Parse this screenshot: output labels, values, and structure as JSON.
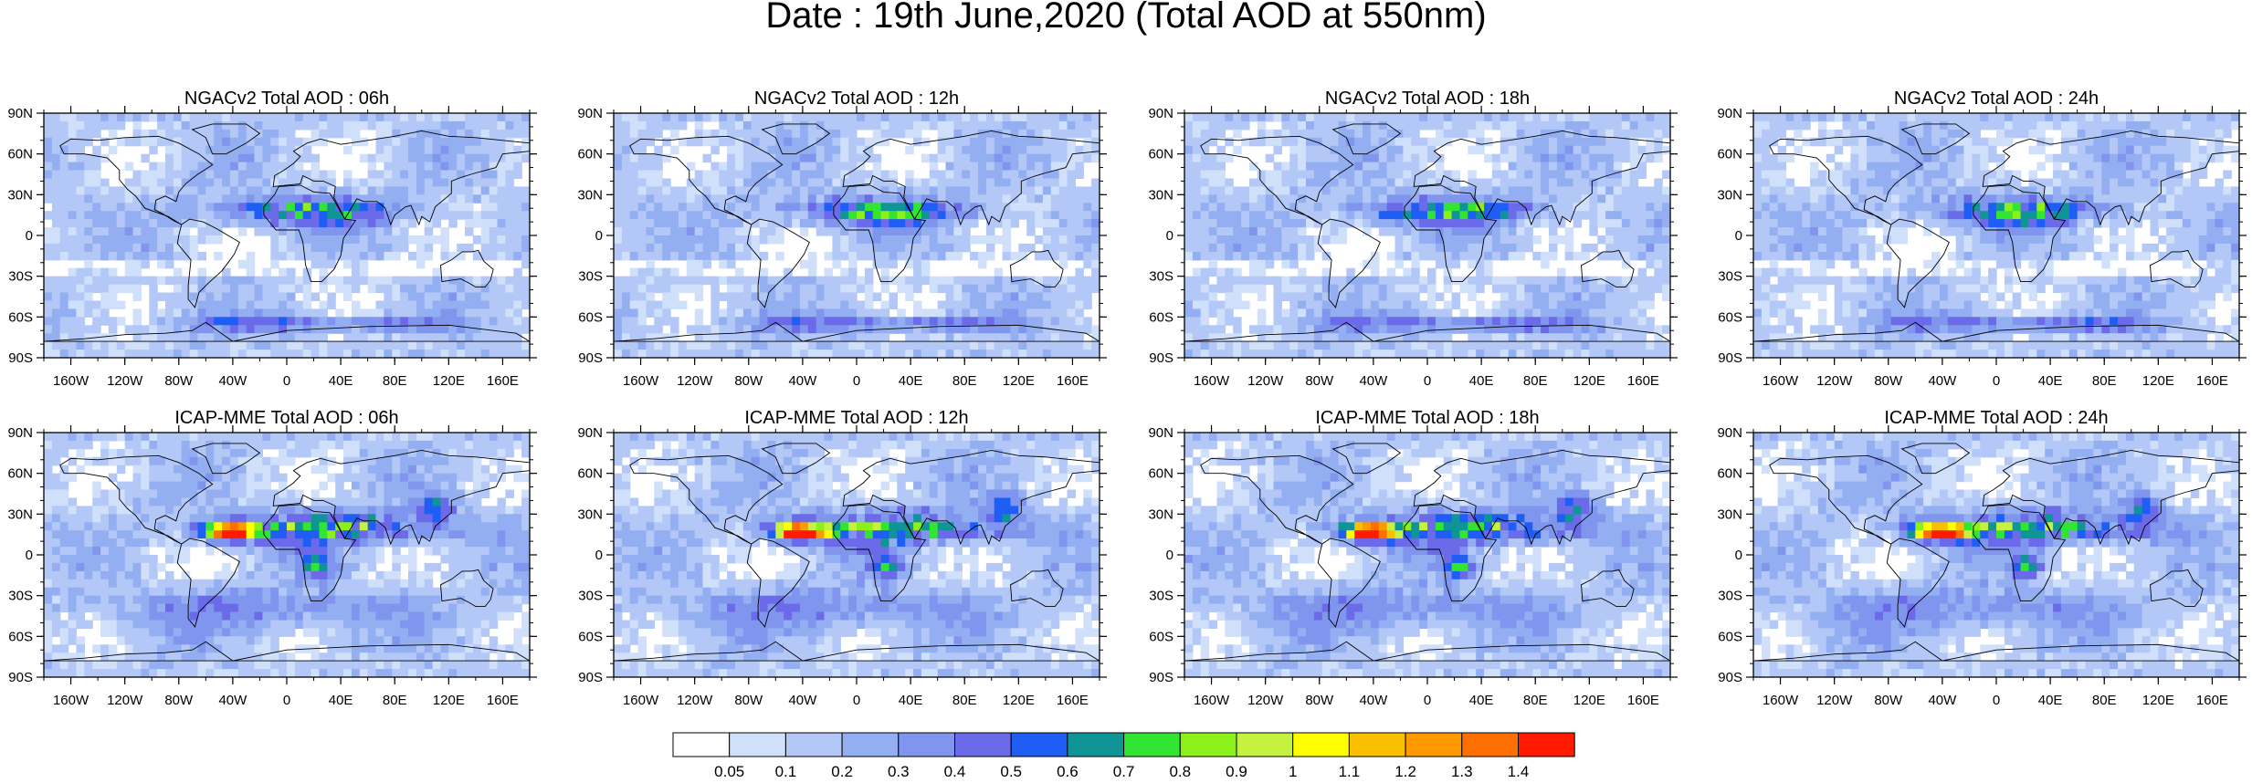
{
  "figure": {
    "title": "Date : 19th June,2020 (Total AOD at 550nm)"
  },
  "chart_data": [
    {
      "type": "heatmap",
      "title": "NGACv2 Total AOD : 06h",
      "model": "NGACv2",
      "variable": "Total AOD",
      "forecast_hour": "06h",
      "x_ticks": [
        "160W",
        "120W",
        "80W",
        "40W",
        "0",
        "40E",
        "80E",
        "120E",
        "160E"
      ],
      "y_ticks": [
        "90N",
        "60N",
        "30N",
        "0",
        "30S",
        "60S",
        "90S"
      ],
      "xlim": [
        -180,
        180
      ],
      "ylim": [
        -90,
        90
      ],
      "features": [
        {
          "name": "dust-band",
          "lon": [
            -60,
            90
          ],
          "lat": [
            5,
            40
          ],
          "aod_max": 0.8
        },
        {
          "name": "southern-ocean",
          "lon": [
            -80,
            120
          ],
          "lat": [
            -70,
            -55
          ],
          "aod_max": 0.5
        }
      ]
    },
    {
      "type": "heatmap",
      "title": "NGACv2 Total AOD : 12h",
      "model": "NGACv2",
      "variable": "Total AOD",
      "forecast_hour": "12h",
      "x_ticks": [
        "160W",
        "120W",
        "80W",
        "40W",
        "0",
        "40E",
        "80E",
        "120E",
        "160E"
      ],
      "y_ticks": [
        "90N",
        "60N",
        "30N",
        "0",
        "30S",
        "60S",
        "90S"
      ],
      "xlim": [
        -180,
        180
      ],
      "ylim": [
        -90,
        90
      ],
      "features": [
        {
          "name": "dust-band",
          "lon": [
            -60,
            90
          ],
          "lat": [
            5,
            40
          ],
          "aod_max": 0.8
        },
        {
          "name": "southern-ocean",
          "lon": [
            -80,
            120
          ],
          "lat": [
            -70,
            -55
          ],
          "aod_max": 0.5
        }
      ]
    },
    {
      "type": "heatmap",
      "title": "NGACv2 Total AOD : 18h",
      "model": "NGACv2",
      "variable": "Total AOD",
      "forecast_hour": "18h",
      "x_ticks": [
        "160W",
        "120W",
        "80W",
        "40W",
        "0",
        "40E",
        "80E",
        "120E",
        "160E"
      ],
      "y_ticks": [
        "90N",
        "60N",
        "30N",
        "0",
        "30S",
        "60S",
        "90S"
      ],
      "xlim": [
        -180,
        180
      ],
      "ylim": [
        -90,
        90
      ],
      "features": [
        {
          "name": "dust-band",
          "lon": [
            -60,
            90
          ],
          "lat": [
            5,
            40
          ],
          "aod_max": 0.8
        },
        {
          "name": "southern-ocean",
          "lon": [
            -80,
            120
          ],
          "lat": [
            -70,
            -55
          ],
          "aod_max": 0.5
        }
      ]
    },
    {
      "type": "heatmap",
      "title": "NGACv2 Total AOD : 24h",
      "model": "NGACv2",
      "variable": "Total AOD",
      "forecast_hour": "24h",
      "x_ticks": [
        "160W",
        "120W",
        "80W",
        "40W",
        "0",
        "40E",
        "80E",
        "120E",
        "160E"
      ],
      "y_ticks": [
        "90N",
        "60N",
        "30N",
        "0",
        "30S",
        "60S",
        "90S"
      ],
      "xlim": [
        -180,
        180
      ],
      "ylim": [
        -90,
        90
      ],
      "features": [
        {
          "name": "dust-band",
          "lon": [
            -60,
            90
          ],
          "lat": [
            5,
            40
          ],
          "aod_max": 0.8
        },
        {
          "name": "southern-ocean",
          "lon": [
            -80,
            120
          ],
          "lat": [
            -70,
            -55
          ],
          "aod_max": 0.5
        }
      ]
    },
    {
      "type": "heatmap",
      "title": "ICAP-MME Total AOD : 06h",
      "model": "ICAP-MME",
      "variable": "Total AOD",
      "forecast_hour": "06h",
      "x_ticks": [
        "160W",
        "120W",
        "80W",
        "40W",
        "0",
        "40E",
        "80E",
        "120E",
        "160E"
      ],
      "y_ticks": [
        "90N",
        "60N",
        "30N",
        "0",
        "30S",
        "60S",
        "90S"
      ],
      "xlim": [
        -180,
        180
      ],
      "ylim": [
        -90,
        90
      ],
      "features": [
        {
          "name": "saharan-dust-plume",
          "lon": [
            -65,
            -20
          ],
          "lat": [
            10,
            25
          ],
          "aod_max": 1.4
        },
        {
          "name": "dust-band",
          "lon": [
            -20,
            100
          ],
          "lat": [
            5,
            40
          ],
          "aod_max": 0.8
        },
        {
          "name": "central-africa",
          "lon": [
            10,
            35
          ],
          "lat": [
            -15,
            0
          ],
          "aod_max": 0.8
        }
      ]
    },
    {
      "type": "heatmap",
      "title": "ICAP-MME Total AOD : 12h",
      "model": "ICAP-MME",
      "variable": "Total AOD",
      "forecast_hour": "12h",
      "x_ticks": [
        "160W",
        "120W",
        "80W",
        "40W",
        "0",
        "40E",
        "80E",
        "120E",
        "160E"
      ],
      "y_ticks": [
        "90N",
        "60N",
        "30N",
        "0",
        "30S",
        "60S",
        "90S"
      ],
      "xlim": [
        -180,
        180
      ],
      "ylim": [
        -90,
        90
      ],
      "features": [
        {
          "name": "saharan-dust-plume",
          "lon": [
            -65,
            -20
          ],
          "lat": [
            10,
            25
          ],
          "aod_max": 1.4
        },
        {
          "name": "dust-band",
          "lon": [
            -20,
            100
          ],
          "lat": [
            5,
            40
          ],
          "aod_max": 0.8
        },
        {
          "name": "central-africa",
          "lon": [
            10,
            35
          ],
          "lat": [
            -15,
            0
          ],
          "aod_max": 0.8
        }
      ]
    },
    {
      "type": "heatmap",
      "title": "ICAP-MME Total AOD : 18h",
      "model": "ICAP-MME",
      "variable": "Total AOD",
      "forecast_hour": "18h",
      "x_ticks": [
        "160W",
        "120W",
        "80W",
        "40W",
        "0",
        "40E",
        "80E",
        "120E",
        "160E"
      ],
      "y_ticks": [
        "90N",
        "60N",
        "30N",
        "0",
        "30S",
        "60S",
        "90S"
      ],
      "xlim": [
        -180,
        180
      ],
      "ylim": [
        -90,
        90
      ],
      "features": [
        {
          "name": "saharan-dust-plume",
          "lon": [
            -65,
            -20
          ],
          "lat": [
            10,
            25
          ],
          "aod_max": 1.4
        },
        {
          "name": "dust-band",
          "lon": [
            -20,
            100
          ],
          "lat": [
            5,
            40
          ],
          "aod_max": 0.8
        },
        {
          "name": "central-africa",
          "lon": [
            10,
            35
          ],
          "lat": [
            -15,
            0
          ],
          "aod_max": 0.8
        }
      ]
    },
    {
      "type": "heatmap",
      "title": "ICAP-MME Total AOD : 24h",
      "model": "ICAP-MME",
      "variable": "Total AOD",
      "forecast_hour": "24h",
      "x_ticks": [
        "160W",
        "120W",
        "80W",
        "40W",
        "0",
        "40E",
        "80E",
        "120E",
        "160E"
      ],
      "y_ticks": [
        "90N",
        "60N",
        "30N",
        "0",
        "30S",
        "60S",
        "90S"
      ],
      "xlim": [
        -180,
        180
      ],
      "ylim": [
        -90,
        90
      ],
      "features": [
        {
          "name": "saharan-dust-plume",
          "lon": [
            -65,
            -20
          ],
          "lat": [
            10,
            25
          ],
          "aod_max": 1.4
        },
        {
          "name": "dust-band",
          "lon": [
            -20,
            100
          ],
          "lat": [
            5,
            40
          ],
          "aod_max": 0.8
        },
        {
          "name": "central-africa",
          "lon": [
            10,
            35
          ],
          "lat": [
            -15,
            0
          ],
          "aod_max": 0.8
        }
      ]
    }
  ],
  "colorbar": {
    "labels": [
      "0.05",
      "0.1",
      "0.2",
      "0.3",
      "0.4",
      "0.5",
      "0.6",
      "0.7",
      "0.8",
      "0.9",
      "1",
      "1.1",
      "1.2",
      "1.3",
      "1.4"
    ],
    "colors": [
      "#ffffff",
      "#d0e0fb",
      "#b3c8f7",
      "#93aff2",
      "#7f95ee",
      "#6b6ae8",
      "#1f5ef5",
      "#0f9595",
      "#33e533",
      "#8cf01a",
      "#c4f23f",
      "#ffff00",
      "#fac000",
      "#ff9900",
      "#ff6f00",
      "#ff1a00"
    ]
  }
}
